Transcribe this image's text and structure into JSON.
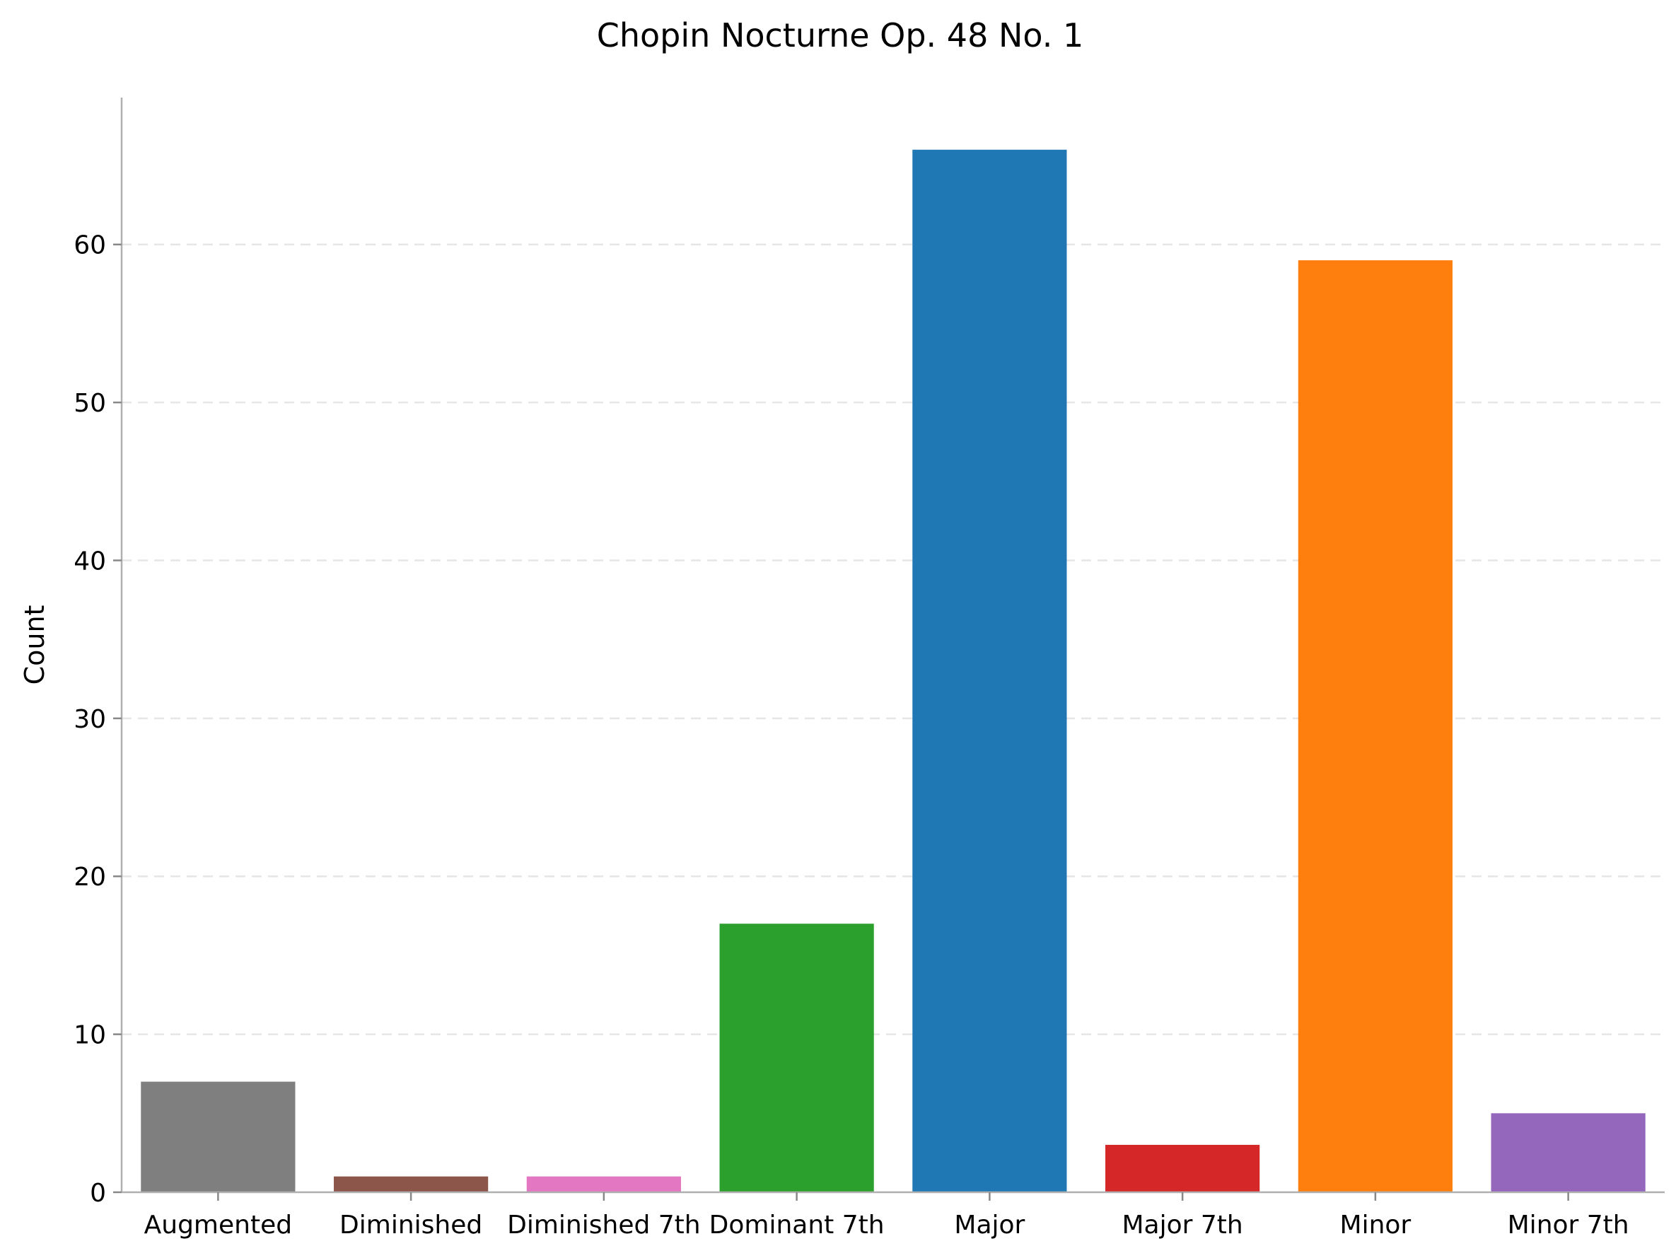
{
  "chart_data": {
    "type": "bar",
    "title": "Chopin Nocturne Op. 48 No. 1",
    "xlabel": "",
    "ylabel": "Count",
    "categories": [
      "Augmented",
      "Diminished",
      "Diminished 7th",
      "Dominant 7th",
      "Major",
      "Major 7th",
      "Minor",
      "Minor 7th"
    ],
    "values": [
      7,
      1,
      1,
      17,
      66,
      3,
      59,
      5
    ],
    "colors": [
      "#7f7f7f",
      "#8c564b",
      "#e377c2",
      "#2ca02c",
      "#1f77b4",
      "#d62728",
      "#ff7f0e",
      "#9467bd"
    ],
    "ylim": [
      0,
      69.3
    ],
    "yticks": [
      0,
      10,
      20,
      30,
      40,
      50,
      60
    ],
    "grid": "y-dashed",
    "legend": "none"
  }
}
